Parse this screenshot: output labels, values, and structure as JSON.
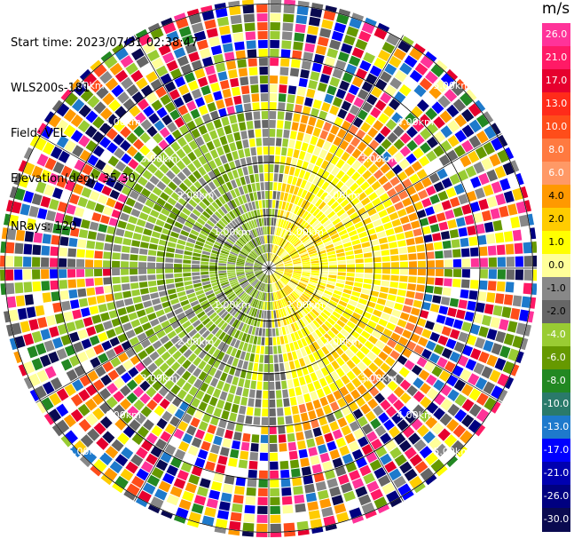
{
  "info": {
    "start_time": "Start time: 2023/07/31 02:38:47",
    "instrument": "WLS200s-181",
    "field": "Field: VEL",
    "elevation": "Elevation(deg): 35.30",
    "nrays": "NRays: 120"
  },
  "colorbar": {
    "unit": "m/s",
    "ticks": [
      "26.0",
      "21.0",
      "17.0",
      "13.0",
      "10.0",
      "8.0",
      "6.0",
      "4.0",
      "2.0",
      "1.0",
      "0.0",
      "-1.0",
      "-2.0",
      "-4.0",
      "-6.0",
      "-8.0",
      "-10.0",
      "-13.0",
      "-17.0",
      "-21.0",
      "-26.0",
      "-30.0"
    ],
    "colors": [
      "#ff3399",
      "#ff1a66",
      "#e6002e",
      "#ff2b1a",
      "#ff4d1a",
      "#ff7a40",
      "#ff9966",
      "#ff9900",
      "#ffcc00",
      "#ffff00",
      "#ffff99",
      "#888888",
      "#666666",
      "#99cc33",
      "#669900",
      "#228822",
      "#2a7a6a",
      "#1e7acc",
      "#0000ff",
      "#0000b0",
      "#000080",
      "#0a0a50"
    ]
  },
  "rings": {
    "labels": [
      "1.00km",
      "2.00km",
      "3.00km",
      "4.00km",
      "5.00km"
    ]
  },
  "chart_data": {
    "type": "heatmap",
    "title": "",
    "field": "VEL",
    "nrays": 120,
    "elevation_deg": 35.3,
    "range_rings_km": [
      1,
      2,
      3,
      4,
      5
    ],
    "value_range": [
      -30.0,
      26.0
    ],
    "units": "m/s"
  }
}
